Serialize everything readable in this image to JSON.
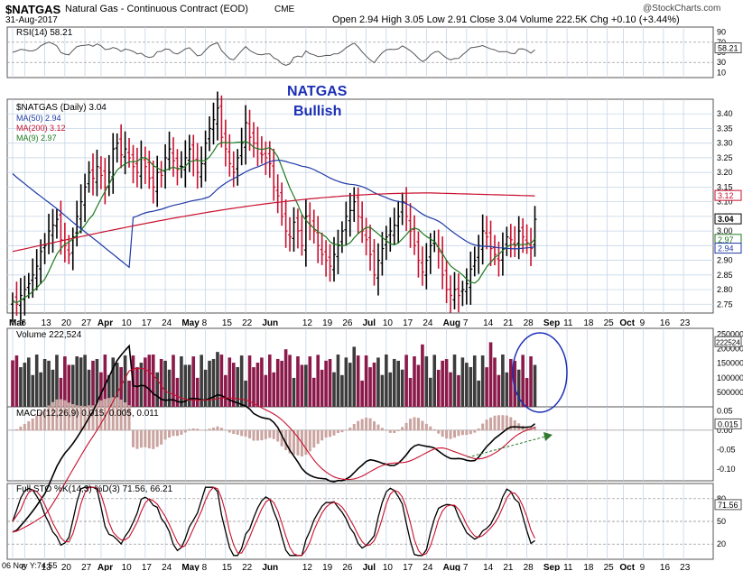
{
  "header": {
    "symbol": "$NATGAS",
    "description": "Natural Gas - Continuous Contract (EOD)",
    "exchange": "CME",
    "date": "31-Aug-2017",
    "watermark": "@StockCharts.com",
    "ohlc_text": "Open 2.94 High 3.05 Low 2.91 Close 3.04 Volume 222.5K Chg +0.10 (+3.44%)",
    "chg_direction": "up-arrow"
  },
  "annotation": {
    "line1": "NATGAS",
    "line2": "Bullish",
    "color": "#1a2fb5"
  },
  "colors": {
    "up_bar": "#000000",
    "down_bar": "#c8102e",
    "ma50": "#1f3aa6",
    "ma200": "#c8102e",
    "ma9": "#1e7a1e",
    "volume_up": "#3c3c3c",
    "volume_down": "#8b1a4a",
    "grid": "#c5d6e6",
    "macd_hist": "#caa4a0",
    "sto_k": "#000000",
    "sto_d": "#c8102e"
  },
  "rsi": {
    "label": "RSI(14) 58.21",
    "value_badge": "58.21",
    "ticks": [
      "90",
      "70",
      "50",
      "30",
      "10"
    ]
  },
  "price": {
    "label": "$NATGAS (Daily) 3.04",
    "legend": [
      {
        "text": "MA(50) 2.94",
        "color": "#1f3aa6"
      },
      {
        "text": "MA(200) 3.12",
        "color": "#c8102e"
      },
      {
        "text": "MA(9) 2.97",
        "color": "#1e7a1e"
      }
    ],
    "ticks": [
      "3.40",
      "3.35",
      "3.30",
      "3.25",
      "3.20",
      "3.15",
      "3.10",
      "3.05",
      "3.00",
      "2.95",
      "2.90",
      "2.85",
      "2.80",
      "2.75"
    ],
    "badges": [
      "3.12",
      "3.04",
      "2.97",
      "2.94"
    ]
  },
  "volume": {
    "label": "Volume 222,524",
    "ticks": [
      "2500000",
      "2000000",
      "1500000",
      "1000000",
      "500000"
    ],
    "badge": "222524"
  },
  "macd": {
    "label": "MACD(12,26,9) 0.015, 0.005, 0.011",
    "ticks": [
      "0.05",
      "0.00",
      "-0.05",
      "-0.10"
    ],
    "badge": "0.015"
  },
  "stoch": {
    "label": "Full STO %K(14,3) %D(3) 71.56, 66.21",
    "ticks": [
      "80",
      "50",
      "20"
    ],
    "badge": "71.56",
    "crosshair": "06 Nov Y:74.55"
  },
  "x_axis": {
    "labels": [
      "Mar",
      "6",
      "13",
      "20",
      "27",
      "Apr",
      "10",
      "17",
      "24",
      "May",
      "8",
      "15",
      "22",
      "Jun",
      "12",
      "19",
      "26",
      "Jul",
      "10",
      "17",
      "24",
      "Aug",
      "7",
      "14",
      "21",
      "28",
      "Sep",
      "11",
      "18",
      "25",
      "Oct",
      "9",
      "16",
      "23"
    ],
    "month_labels": [
      "Mar",
      "Apr",
      "May",
      "Jun",
      "Jul",
      "Aug",
      "Sep",
      "Oct"
    ]
  },
  "chart_data": {
    "type": "ohlc",
    "title": "$NATGAS",
    "x": [
      "Mar 1",
      "Mar 2",
      "Mar 3",
      "Mar 6",
      "Mar 7",
      "Mar 8",
      "Mar 9",
      "Mar 10",
      "Mar 13",
      "Mar 14",
      "Mar 15",
      "Mar 16",
      "Mar 17",
      "Mar 20",
      "Mar 21",
      "Mar 22",
      "Mar 23",
      "Mar 24",
      "Mar 27",
      "Mar 28",
      "Mar 29",
      "Mar 30",
      "Mar 31",
      "Apr 3",
      "Apr 4",
      "Apr 5",
      "Apr 6",
      "Apr 7",
      "Apr 10",
      "Apr 11",
      "Apr 12",
      "Apr 13",
      "Apr 14",
      "Apr 17",
      "Apr 18",
      "Apr 19",
      "Apr 20",
      "Apr 21",
      "Apr 24",
      "Apr 25",
      "Apr 26",
      "Apr 27",
      "Apr 28",
      "May 1",
      "May 2",
      "May 3",
      "May 4",
      "May 5",
      "May 8",
      "May 9",
      "May 10",
      "May 11",
      "May 12",
      "May 15",
      "May 16",
      "May 17",
      "May 18",
      "May 19",
      "May 22",
      "May 23",
      "May 24",
      "May 25",
      "May 26",
      "May 29",
      "May 30",
      "May 31",
      "Jun 1",
      "Jun 2",
      "Jun 5",
      "Jun 6",
      "Jun 7",
      "Jun 8",
      "Jun 9",
      "Jun 12",
      "Jun 13",
      "Jun 14",
      "Jun 15",
      "Jun 16",
      "Jun 19",
      "Jun 20",
      "Jun 21",
      "Jun 22",
      "Jun 23",
      "Jun 26",
      "Jun 27",
      "Jun 28",
      "Jun 29",
      "Jun 30",
      "Jul 3",
      "Jul 5",
      "Jul 6",
      "Jul 7",
      "Jul 10",
      "Jul 11",
      "Jul 12",
      "Jul 13",
      "Jul 14",
      "Jul 17",
      "Jul 18",
      "Jul 19",
      "Jul 20",
      "Jul 21",
      "Jul 24",
      "Jul 25",
      "Jul 26",
      "Jul 27",
      "Jul 28",
      "Jul 31",
      "Aug 1",
      "Aug 2",
      "Aug 3",
      "Aug 4",
      "Aug 7",
      "Aug 8",
      "Aug 9",
      "Aug 10",
      "Aug 11",
      "Aug 14",
      "Aug 15",
      "Aug 16",
      "Aug 17",
      "Aug 18",
      "Aug 21",
      "Aug 22",
      "Aug 23",
      "Aug 24",
      "Aug 25",
      "Aug 28",
      "Aug 29",
      "Aug 30",
      "Aug 31"
    ],
    "close": [
      2.76,
      2.75,
      2.78,
      2.8,
      2.82,
      2.85,
      2.88,
      2.93,
      2.95,
      3.0,
      3.02,
      3.04,
      2.97,
      2.95,
      2.92,
      2.98,
      3.05,
      3.1,
      3.15,
      3.2,
      3.18,
      3.22,
      3.19,
      3.15,
      3.2,
      3.28,
      3.3,
      3.26,
      3.28,
      3.25,
      3.22,
      3.2,
      3.25,
      3.22,
      3.18,
      3.15,
      3.2,
      3.19,
      3.25,
      3.28,
      3.24,
      3.21,
      3.22,
      3.25,
      3.28,
      3.24,
      3.2,
      3.23,
      3.3,
      3.35,
      3.38,
      3.42,
      3.32,
      3.28,
      3.23,
      3.2,
      3.25,
      3.3,
      3.37,
      3.32,
      3.3,
      3.28,
      3.26,
      3.25,
      3.23,
      3.15,
      3.12,
      3.05,
      3.0,
      2.98,
      3.03,
      3.0,
      2.95,
      3.05,
      3.02,
      3.0,
      2.95,
      2.92,
      2.9,
      2.88,
      2.92,
      2.95,
      3.0,
      3.05,
      3.07,
      3.1,
      3.05,
      3.0,
      2.97,
      2.92,
      2.85,
      2.9,
      2.94,
      2.98,
      3.0,
      3.02,
      3.05,
      3.1,
      3.05,
      3.0,
      2.95,
      2.9,
      2.86,
      2.9,
      2.95,
      2.96,
      2.93,
      2.85,
      2.8,
      2.78,
      2.8,
      2.78,
      2.8,
      2.82,
      2.87,
      2.9,
      2.95,
      3.0,
      2.98,
      2.94,
      2.92,
      2.9,
      2.94,
      2.98,
      2.97,
      2.95,
      3.0,
      2.98,
      2.96,
      2.94,
      3.04
    ],
    "ma50": {
      "name": "MA(50)",
      "last": 2.94
    },
    "ma200": {
      "name": "MA(200)",
      "last": 3.12
    },
    "ma9": {
      "name": "MA(9)",
      "last": 2.97
    },
    "ylim": [
      2.72,
      3.45
    ]
  }
}
